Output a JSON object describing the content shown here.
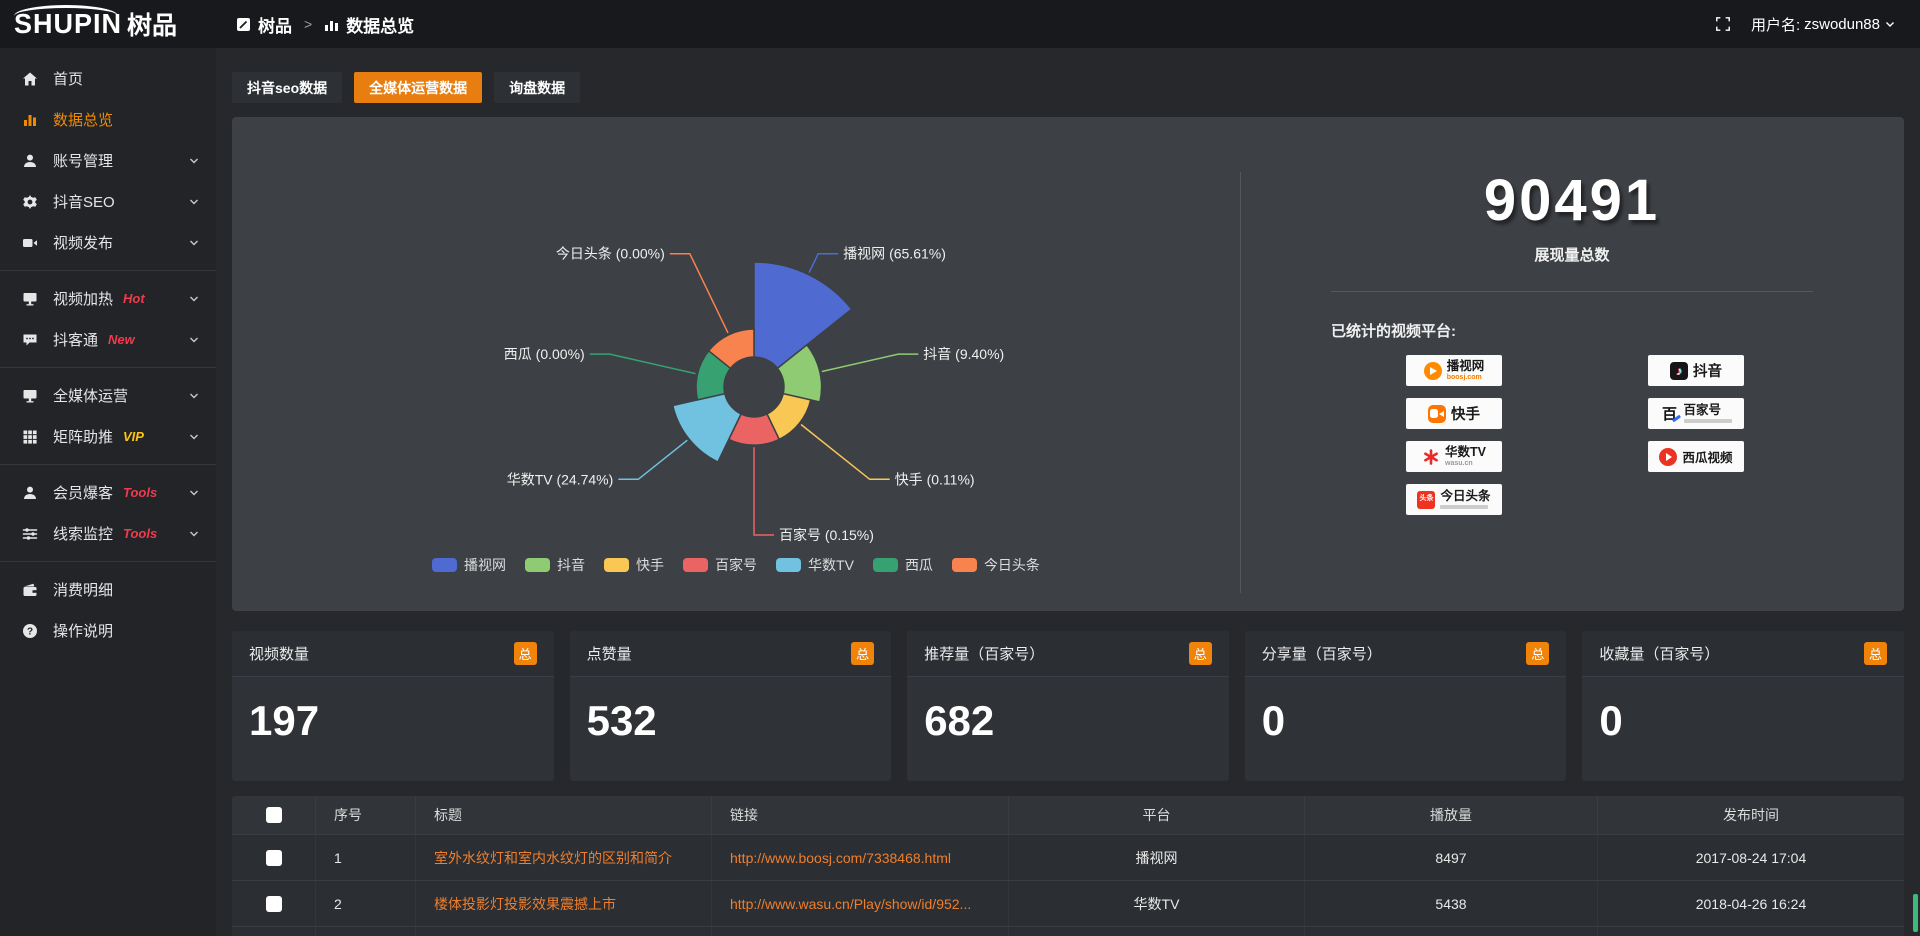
{
  "header": {
    "logo_en": "SHUPIN",
    "logo_cn": "树品",
    "breadcrumb": [
      {
        "label": "树品",
        "icon": "board-icon"
      },
      {
        "label": "数据总览",
        "icon": "bar-chart-icon"
      }
    ],
    "breadcrumb_separator": ">",
    "username_label": "用户名:",
    "username": "zswodun88"
  },
  "tabs": [
    {
      "id": "douyin-seo-data",
      "label": "抖音seo数据",
      "active": false
    },
    {
      "id": "media-operation-data",
      "label": "全媒体运营数据",
      "active": true
    },
    {
      "id": "inquiry-data",
      "label": "询盘数据",
      "active": false
    }
  ],
  "sidebar": {
    "items": [
      {
        "id": "home",
        "label": "首页",
        "icon": "home",
        "active": false,
        "chevron": false
      },
      {
        "id": "data-overview",
        "label": "数据总览",
        "icon": "bar-chart",
        "active": true,
        "chevron": false
      },
      {
        "id": "account-management",
        "label": "账号管理",
        "icon": "user",
        "chevron": true
      },
      {
        "id": "douyin-seo",
        "label": "抖音SEO",
        "icon": "gear",
        "chevron": true
      },
      {
        "id": "video-publish",
        "label": "视频发布",
        "icon": "video",
        "chevron": true,
        "divider_after": true
      },
      {
        "id": "video-heating",
        "label": "视频加热",
        "icon": "screen-play",
        "tag": "Hot",
        "tag_color": "#ee3b4e",
        "chevron": true
      },
      {
        "id": "douketong",
        "label": "抖客通",
        "icon": "chat",
        "tag": "New",
        "tag_color": "#ee3b4e",
        "chevron": true,
        "divider_after": true
      },
      {
        "id": "media-operation",
        "label": "全媒体运营",
        "icon": "monitor",
        "chevron": true
      },
      {
        "id": "matrix-boost",
        "label": "矩阵助推",
        "icon": "grid",
        "tag": "VIP",
        "tag_color": "#fdc414",
        "chevron": true,
        "divider_after": true
      },
      {
        "id": "member-baoke",
        "label": "会员爆客",
        "icon": "user",
        "tag": "Tools",
        "tag_color": "#ee3b4e",
        "chevron": true
      },
      {
        "id": "clue-monitor",
        "label": "线索监控",
        "icon": "sliders",
        "tag": "Tools",
        "tag_color": "#ee3b4e",
        "chevron": true,
        "divider_after": true
      },
      {
        "id": "consumption-detail",
        "label": "消费明细",
        "icon": "wallet",
        "chevron": false
      },
      {
        "id": "operation-guide",
        "label": "操作说明",
        "icon": "question",
        "chevron": false
      }
    ]
  },
  "chart_data": {
    "type": "pie",
    "variant": "nightingale-rose",
    "legend_position": "bottom",
    "label_format": "{name} ({value}%)",
    "items": [
      {
        "name": "播视网",
        "value": 65.61,
        "color": "#4f6bd2"
      },
      {
        "name": "抖音",
        "value": 9.4,
        "color": "#8ecb72"
      },
      {
        "name": "快手",
        "value": 0.11,
        "color": "#f8c754"
      },
      {
        "name": "百家号",
        "value": 0.15,
        "color": "#ea6463"
      },
      {
        "name": "华数TV",
        "value": 24.74,
        "color": "#70c2e0"
      },
      {
        "name": "西瓜",
        "value": 0.0,
        "color": "#38a172"
      },
      {
        "name": "今日头条",
        "value": 0.0,
        "color": "#f9834e"
      }
    ]
  },
  "summary": {
    "total": "90491",
    "total_label": "展现量总数",
    "platforms_title": "已统计的视频平台:",
    "platform_badges": [
      {
        "id": "boosj",
        "name": "播视网",
        "sub": "boosj.com"
      },
      {
        "id": "douyin",
        "name": "抖音"
      },
      {
        "id": "kuaishou",
        "name": "快手"
      },
      {
        "id": "baijiahao",
        "name": "百家号",
        "icon_text": "百"
      },
      {
        "id": "wasu",
        "name": "华数TV",
        "sub": "wasu.cn"
      },
      {
        "id": "xigua",
        "name": "西瓜视频"
      },
      {
        "id": "toutiao",
        "name": "今日头条",
        "icon_text": "头条"
      }
    ]
  },
  "stats": {
    "total_badge": "总",
    "cards": [
      {
        "label": "视频数量",
        "value": "197"
      },
      {
        "label": "点赞量",
        "value": "532"
      },
      {
        "label": "推荐量（百家号）",
        "value": "682"
      },
      {
        "label": "分享量（百家号）",
        "value": "0"
      },
      {
        "label": "收藏量（百家号）",
        "value": "0"
      }
    ]
  },
  "table": {
    "headers": [
      "序号",
      "标题",
      "链接",
      "平台",
      "播放量",
      "发布时间"
    ],
    "rows": [
      {
        "index": "1",
        "title": "室外水纹灯和室内水纹灯的区别和简介",
        "link": "http://www.boosj.com/7338468.html",
        "platform": "播视网",
        "plays": "8497",
        "published": "2017-08-24 17:04"
      },
      {
        "index": "2",
        "title": "楼体投影灯投影效果震撼上市",
        "link": "http://www.wasu.cn/Play/show/id/952...",
        "platform": "华数TV",
        "plays": "5438",
        "published": "2018-04-26 16:24"
      }
    ],
    "has_partial_row": true
  },
  "colors": {
    "accent_orange": "#e87d10",
    "sidebar_active_orange": "#f18a00",
    "link_orange": "#ef7f2e",
    "tag_red": "#ee3b4e",
    "tag_gold": "#fdc414",
    "panel_bg": "#3d4045"
  }
}
